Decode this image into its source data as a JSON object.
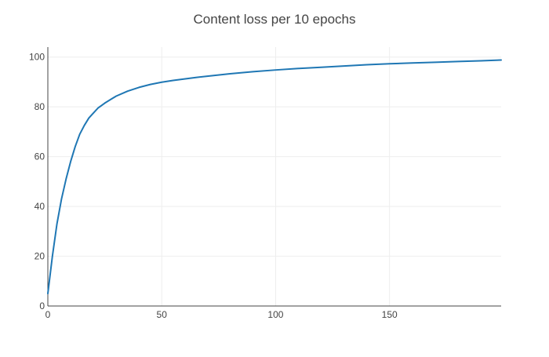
{
  "chart_data": {
    "type": "line",
    "title": "Content loss per 10 epochs",
    "xlabel": "",
    "ylabel": "",
    "xlim": [
      0,
      199
    ],
    "ylim": [
      0,
      104
    ],
    "x_ticks": [
      0,
      50,
      100,
      150
    ],
    "y_ticks": [
      0,
      20,
      40,
      60,
      80,
      100
    ],
    "grid": true,
    "legend": "none",
    "series": [
      {
        "color": "#1f77b4",
        "x": [
          0,
          2,
          4,
          6,
          8,
          10,
          12,
          14,
          16,
          18,
          20,
          22,
          25,
          28,
          30,
          35,
          40,
          45,
          50,
          55,
          60,
          65,
          70,
          80,
          90,
          100,
          110,
          120,
          130,
          140,
          150,
          160,
          170,
          180,
          190,
          199
        ],
        "y": [
          5,
          20,
          33,
          43,
          51,
          58,
          64,
          69,
          72.5,
          75.5,
          77.5,
          79.5,
          81.5,
          83.2,
          84.3,
          86.3,
          87.8,
          89,
          89.9,
          90.6,
          91.2,
          91.8,
          92.3,
          93.3,
          94.1,
          94.8,
          95.4,
          95.9,
          96.4,
          96.9,
          97.3,
          97.6,
          97.9,
          98.2,
          98.5,
          98.8
        ]
      }
    ]
  }
}
